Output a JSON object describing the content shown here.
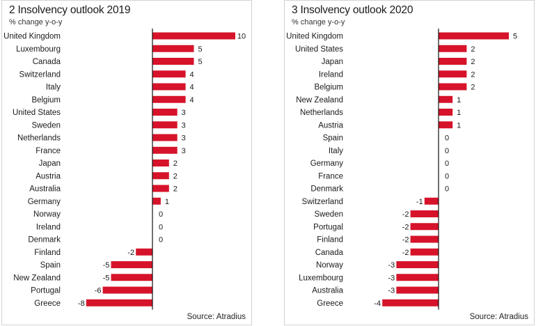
{
  "colors": {
    "bar": "#d6132a",
    "axis": "#111111",
    "text": "#1a1a1a"
  },
  "chart_data": [
    {
      "type": "bar",
      "orientation": "horizontal",
      "title": "2 Insolvency outlook 2019",
      "subtitle": "% change y-o-y",
      "source": "Source: Atradius",
      "categories": [
        "United Kingdom",
        "Luxembourg",
        "Canada",
        "Switzerland",
        "Italy",
        "Belgium",
        "United States",
        "Sweden",
        "Netherlands",
        "France",
        "Japan",
        "Austria",
        "Australia",
        "Germany",
        "Norway",
        "Ireland",
        "Denmark",
        "Finland",
        "Spain",
        "New Zealand",
        "Portugal",
        "Greece"
      ],
      "values": [
        10,
        5,
        5,
        4,
        4,
        4,
        3,
        3,
        3,
        3,
        2,
        2,
        2,
        1,
        0,
        0,
        0,
        -2,
        -5,
        -5,
        -6,
        -8
      ],
      "xlim": [
        -9.5,
        11
      ],
      "grid": false
    },
    {
      "type": "bar",
      "orientation": "horizontal",
      "title": "3 Insolvency outlook 2020",
      "subtitle": "% change y-o-y",
      "source": "Source: Atradius",
      "categories": [
        "United Kingdom",
        "United States",
        "Japan",
        "Ireland",
        "Belgium",
        "New Zealand",
        "Netherlands",
        "Austria",
        "Spain",
        "Italy",
        "Germany",
        "France",
        "Denmark",
        "Switzerland",
        "Sweden",
        "Portugal",
        "Finland",
        "Canada",
        "Norway",
        "Luxembourg",
        "Australia",
        "Greece"
      ],
      "values": [
        5,
        2,
        2,
        2,
        2,
        1,
        1,
        1,
        0,
        0,
        0,
        0,
        0,
        -1,
        -2,
        -2,
        -2,
        -2,
        -3,
        -3,
        -3,
        -4
      ],
      "xlim": [
        -4.5,
        6
      ],
      "grid": false
    }
  ]
}
